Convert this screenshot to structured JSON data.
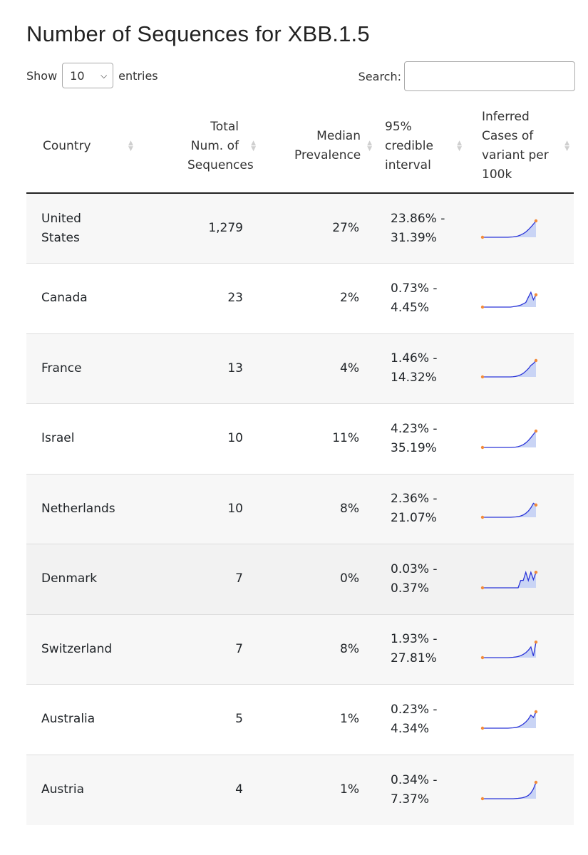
{
  "title": "Number of Sequences for XBB.1.5",
  "length": {
    "show_label": "Show",
    "selected": "10",
    "entries_label": "entries"
  },
  "search": {
    "label": "Search:",
    "value": "",
    "placeholder": ""
  },
  "columns": [
    {
      "key": "country",
      "label": "Country"
    },
    {
      "key": "total",
      "label": "Total Num. of Sequences"
    },
    {
      "key": "median",
      "label": "Median Prevalence"
    },
    {
      "key": "ci",
      "label": "95% credible interval"
    },
    {
      "key": "cases",
      "label": "Inferred Cases of variant per 100k"
    }
  ],
  "rows": [
    {
      "country": "United States",
      "total": "1,279",
      "median": "27%",
      "ci_low": "23.86% -",
      "ci_high": "31.39%",
      "trend": [
        0,
        0,
        0,
        0,
        0,
        0,
        0,
        0,
        0,
        0,
        0,
        0.01,
        0.02,
        0.04,
        0.08,
        0.14,
        0.22,
        0.32,
        0.46,
        0.62,
        0.8,
        1
      ]
    },
    {
      "country": "Canada",
      "total": "23",
      "median": "2%",
      "ci_low": "0.73% -",
      "ci_high": "4.45%",
      "trend": [
        0,
        0,
        0,
        0,
        0,
        0,
        0,
        0,
        0,
        0,
        0,
        0,
        0.02,
        0.05,
        0.08,
        0.12,
        0.2,
        0.28,
        0.6,
        0.9,
        0.45,
        0.75
      ]
    },
    {
      "country": "France",
      "total": "13",
      "median": "4%",
      "ci_low": "1.46% -",
      "ci_high": "14.32%",
      "trend": [
        0,
        0,
        0,
        0,
        0,
        0,
        0,
        0,
        0,
        0,
        0,
        0,
        0.01,
        0.03,
        0.07,
        0.13,
        0.22,
        0.35,
        0.5,
        0.7,
        0.82,
        1
      ]
    },
    {
      "country": "Israel",
      "total": "10",
      "median": "11%",
      "ci_low": "4.23% -",
      "ci_high": "35.19%",
      "trend": [
        0,
        0,
        0,
        0,
        0,
        0,
        0,
        0,
        0,
        0,
        0,
        0,
        0.01,
        0.02,
        0.05,
        0.1,
        0.17,
        0.28,
        0.42,
        0.6,
        0.8,
        1
      ]
    },
    {
      "country": "Netherlands",
      "total": "10",
      "median": "8%",
      "ci_low": "2.36% -",
      "ci_high": "21.07%",
      "trend": [
        0,
        0,
        0,
        0,
        0,
        0,
        0,
        0,
        0,
        0,
        0,
        0,
        0.01,
        0.02,
        0.04,
        0.08,
        0.14,
        0.24,
        0.38,
        0.58,
        0.85,
        0.75
      ]
    },
    {
      "country": "Denmark",
      "total": "7",
      "median": "0%",
      "ci_low": "0.03% -",
      "ci_high": "0.37%",
      "trend": [
        0,
        0,
        0,
        0,
        0,
        0,
        0,
        0,
        0,
        0,
        0,
        0,
        0,
        0,
        0,
        0.45,
        0.45,
        0.95,
        0.45,
        0.95,
        0.5,
        0.95
      ]
    },
    {
      "country": "Switzerland",
      "total": "7",
      "median": "8%",
      "ci_low": "1.93% -",
      "ci_high": "27.81%",
      "trend": [
        0,
        0,
        0,
        0,
        0,
        0,
        0,
        0,
        0,
        0,
        0,
        0.01,
        0.02,
        0.04,
        0.07,
        0.12,
        0.2,
        0.3,
        0.45,
        0.65,
        0.1,
        0.95
      ]
    },
    {
      "country": "Australia",
      "total": "5",
      "median": "1%",
      "ci_low": "0.23% -",
      "ci_high": "4.34%",
      "trend": [
        0,
        0,
        0,
        0,
        0,
        0,
        0,
        0,
        0,
        0,
        0,
        0.01,
        0.02,
        0.04,
        0.08,
        0.15,
        0.25,
        0.38,
        0.55,
        0.8,
        0.65,
        1
      ]
    },
    {
      "country": "Austria",
      "total": "4",
      "median": "1%",
      "ci_low": "0.34% -",
      "ci_high": "7.37%",
      "trend": [
        0,
        0,
        0,
        0,
        0,
        0,
        0,
        0,
        0,
        0,
        0,
        0,
        0,
        0.01,
        0.02,
        0.04,
        0.07,
        0.12,
        0.2,
        0.35,
        0.6,
        1
      ]
    }
  ],
  "colors": {
    "line": "#2b35d8",
    "fill": "#c9d4f5",
    "dot": "#f28b3a",
    "stripe": "#f7f7f7"
  }
}
